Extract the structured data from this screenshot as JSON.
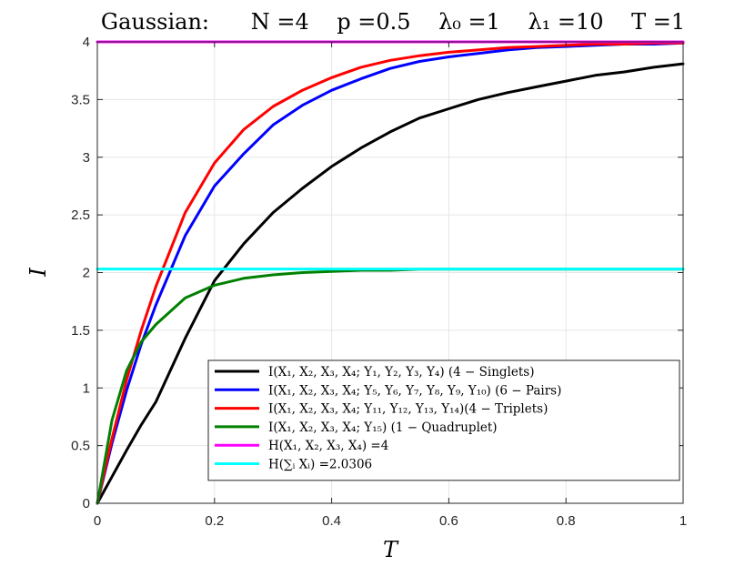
{
  "chart_data": {
    "type": "line",
    "title": "Gaussian:      N =4    p =0.5    λ₀ =1    λ₁ =10    T =1",
    "xlabel": "T",
    "ylabel": "I",
    "xlim": [
      0,
      1
    ],
    "ylim": [
      0,
      4
    ],
    "xticks": [
      "0",
      "0.2",
      "0.4",
      "0.6",
      "0.8",
      "1"
    ],
    "yticks": [
      "0",
      "0.5",
      "1",
      "1.5",
      "2",
      "2.5",
      "3",
      "3.5",
      "4"
    ],
    "grid": true,
    "legend_position": "bottom-right",
    "x": [
      0,
      0.025,
      0.05,
      0.075,
      0.1,
      0.15,
      0.2,
      0.25,
      0.3,
      0.35,
      0.4,
      0.45,
      0.5,
      0.55,
      0.6,
      0.65,
      0.7,
      0.75,
      0.8,
      0.85,
      0.9,
      0.95,
      1.0
    ],
    "series": [
      {
        "name": "I(X₁, X₂, X₃, X₄; Y₁, Y₂, Y₃, Y₄)    (4 − Singlets)",
        "color": "#000000",
        "values": [
          0,
          0.23,
          0.46,
          0.68,
          0.88,
          1.43,
          1.93,
          2.25,
          2.52,
          2.73,
          2.92,
          3.08,
          3.22,
          3.34,
          3.42,
          3.5,
          3.56,
          3.61,
          3.66,
          3.71,
          3.74,
          3.78,
          3.81
        ]
      },
      {
        "name": "I(X₁, X₂, X₃, X₄; Y₅, Y₆, Y₇, Y₈, Y₉, Y₁₀)    (6 − Pairs)",
        "color": "#0000ff",
        "values": [
          0,
          0.52,
          0.98,
          1.38,
          1.72,
          2.32,
          2.75,
          3.03,
          3.28,
          3.45,
          3.58,
          3.68,
          3.77,
          3.83,
          3.87,
          3.9,
          3.93,
          3.95,
          3.96,
          3.97,
          3.98,
          3.98,
          3.99
        ]
      },
      {
        "name": "I(X₁, X₂, X₃, X₄; Y₁₁, Y₁₂, Y₁₃, Y₁₄)(4 − Triplets)",
        "color": "#ff0000",
        "values": [
          0,
          0.56,
          1.07,
          1.5,
          1.88,
          2.52,
          2.95,
          3.24,
          3.44,
          3.58,
          3.69,
          3.78,
          3.84,
          3.88,
          3.91,
          3.93,
          3.95,
          3.96,
          3.97,
          3.98,
          3.98,
          3.99,
          3.99
        ]
      },
      {
        "name": "I(X₁, X₂, X₃, X₄; Y₁₅)    (1 − Quadruplet)",
        "color": "#008000",
        "values": [
          0,
          0.72,
          1.15,
          1.4,
          1.55,
          1.78,
          1.89,
          1.95,
          1.98,
          2.0,
          2.01,
          2.02,
          2.02,
          2.03,
          2.03,
          2.03,
          2.03,
          2.03,
          2.03,
          2.03,
          2.03,
          2.03,
          2.03
        ]
      },
      {
        "name": "H(X₁, X₂, X₃, X₄) =4",
        "color": "#ff00ff",
        "values": [
          4,
          4,
          4,
          4,
          4,
          4,
          4,
          4,
          4,
          4,
          4,
          4,
          4,
          4,
          4,
          4,
          4,
          4,
          4,
          4,
          4,
          4,
          4
        ]
      },
      {
        "name": "H(∑ᵢ Xᵢ) =2.0306",
        "color": "#00ffff",
        "values": [
          2.0306,
          2.0306,
          2.0306,
          2.0306,
          2.0306,
          2.0306,
          2.0306,
          2.0306,
          2.0306,
          2.0306,
          2.0306,
          2.0306,
          2.0306,
          2.0306,
          2.0306,
          2.0306,
          2.0306,
          2.0306,
          2.0306,
          2.0306,
          2.0306,
          2.0306,
          2.0306
        ]
      }
    ]
  }
}
